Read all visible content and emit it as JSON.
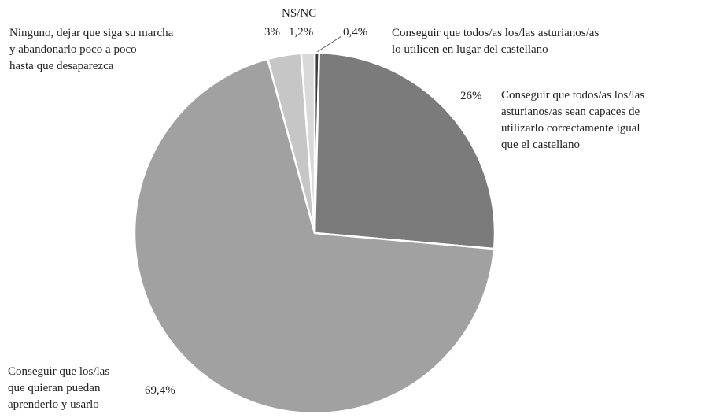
{
  "chart_data": {
    "type": "pie",
    "categories": [
      "Conseguir que todos/as los/las asturianos/as\nlo utilicen en lugar del castellano",
      "Conseguir que todos/as  los/las\nasturianos/as sean capaces de\nutilizarlo correctamente igual\nque el castellano",
      "Conseguir que los/las\nque quieran puedan\naprenderlo y usarlo",
      "Ninguno, dejar que siga su marcha\ny abandonarlo poco a poco\nhasta que desaparezca",
      "NS/NC"
    ],
    "values": [
      0.4,
      26,
      69.4,
      3,
      1.2
    ],
    "value_labels": [
      "0,4%",
      "26%",
      "69,4%",
      "3%",
      "1,2%"
    ],
    "colors": [
      "#3c3c3c",
      "#7b7b7b",
      "#a1a1a1",
      "#c6c6c6",
      "#d9d9d9"
    ]
  }
}
